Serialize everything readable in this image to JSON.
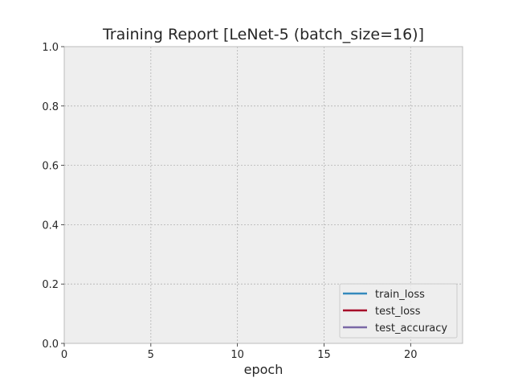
{
  "chart_data": {
    "type": "line",
    "title": "Training Report [LeNet-5 (batch_size=16)]",
    "xlabel": "epoch",
    "ylabel": "",
    "xlim": [
      0,
      23
    ],
    "ylim": [
      0,
      1
    ],
    "xticks": [
      0,
      5,
      10,
      15,
      20
    ],
    "yticks": [
      0.0,
      0.2,
      0.4,
      0.6,
      0.8,
      1.0
    ],
    "xtick_labels": [
      "0",
      "5",
      "10",
      "15",
      "20"
    ],
    "ytick_labels": [
      "0.0",
      "0.2",
      "0.4",
      "0.6",
      "0.8",
      "1.0"
    ],
    "grid": true,
    "legend_position": "lower-right",
    "series": [
      {
        "name": "train_loss",
        "color": "#348abd",
        "x": [],
        "y": []
      },
      {
        "name": "test_loss",
        "color": "#a60628",
        "x": [],
        "y": []
      },
      {
        "name": "test_accuracy",
        "color": "#7a68a6",
        "x": [],
        "y": []
      }
    ],
    "colors": {
      "plot_background": "#eeeeee",
      "grid": "#b2b2b2",
      "text": "#262626"
    }
  }
}
